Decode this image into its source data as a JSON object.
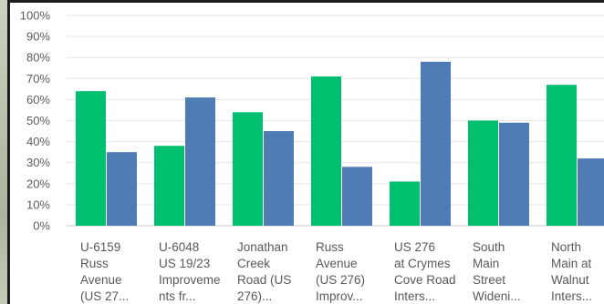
{
  "chart_data": {
    "type": "bar",
    "categories": [
      [
        "U-6159",
        "Russ",
        "Avenue",
        "(US 27..."
      ],
      [
        "U-6048",
        "US 19/23",
        "Improveme",
        "nts fr..."
      ],
      [
        "Jonathan",
        "Creek",
        "Road (US",
        "276)..."
      ],
      [
        "Russ",
        "Avenue",
        "(US 276)",
        "Improv..."
      ],
      [
        "US 276",
        "at Crymes",
        "Cove Road",
        "Inters..."
      ],
      [
        "South",
        "Main",
        "Street",
        "Wideni..."
      ],
      [
        "North",
        "Main at",
        "Walnut",
        "Inters..."
      ]
    ],
    "series": [
      {
        "color": "#00bf6f",
        "values": [
          64,
          38,
          54,
          71,
          21,
          50,
          67
        ]
      },
      {
        "color": "#507cb6",
        "values": [
          35,
          61,
          45,
          28,
          78,
          49,
          32
        ]
      }
    ],
    "yticks": [
      "0%",
      "10%",
      "20%",
      "30%",
      "40%",
      "50%",
      "60%",
      "70%",
      "80%",
      "90%",
      "100%"
    ],
    "ylim": [
      0,
      100
    ],
    "grid": true,
    "legend": "none"
  }
}
